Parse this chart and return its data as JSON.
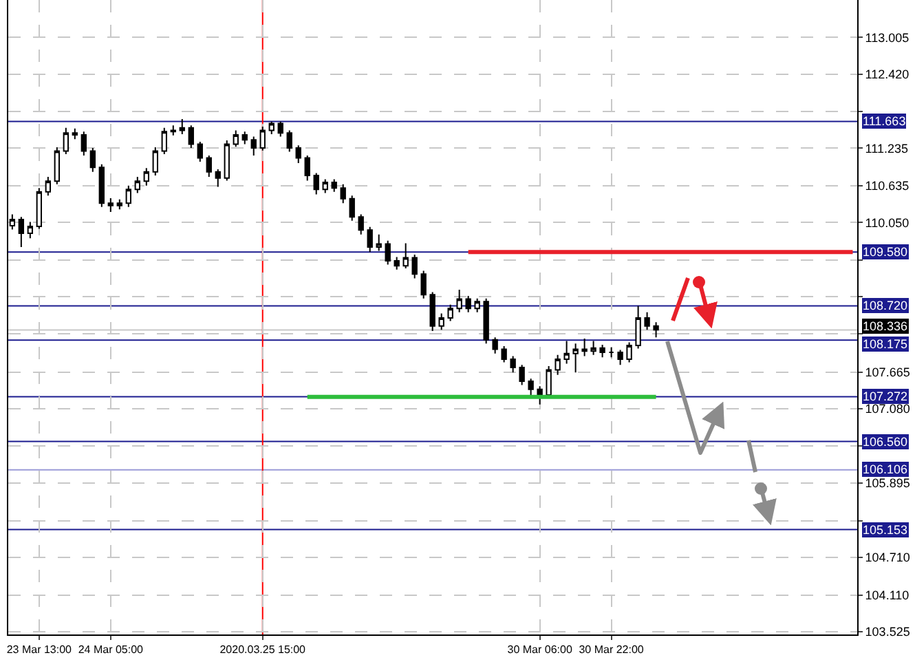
{
  "chart_data": {
    "type": "candlestick",
    "categories": [
      null,
      null,
      null,
      "23 Mar 13:00",
      null,
      null,
      null,
      null,
      null,
      null,
      null,
      "24 Mar 05:00",
      null,
      null,
      null,
      null,
      null,
      null,
      null,
      null,
      null,
      null,
      null,
      null,
      null,
      null,
      null,
      null,
      "2020.03.25 15:00",
      null,
      null,
      null,
      null,
      null,
      null,
      null,
      null,
      null,
      null,
      null,
      null,
      null,
      null,
      null,
      null,
      null,
      null,
      null,
      null,
      null,
      null,
      null,
      null,
      null,
      null,
      null,
      null,
      null,
      null,
      "30 Mar 06:00",
      null,
      null,
      null,
      null,
      null,
      null,
      null,
      "30 Mar 22:00",
      null,
      null,
      null,
      null,
      null,
      null,
      null,
      null,
      null,
      null,
      null,
      null,
      null,
      null,
      null,
      null,
      null,
      null,
      null,
      null,
      null,
      null,
      null,
      null,
      null,
      null,
      null
    ],
    "ohlc": [
      [
        110.0,
        110.18,
        109.94,
        110.1
      ],
      [
        110.1,
        110.14,
        109.66,
        109.88
      ],
      [
        109.88,
        110.06,
        109.8,
        109.99
      ],
      [
        109.99,
        110.6,
        109.95,
        110.54
      ],
      [
        110.54,
        110.78,
        110.48,
        110.71
      ],
      [
        110.71,
        111.25,
        110.66,
        111.19
      ],
      [
        111.19,
        111.56,
        111.14,
        111.48
      ],
      [
        111.48,
        111.55,
        111.38,
        111.45
      ],
      [
        111.45,
        111.5,
        111.12,
        111.19
      ],
      [
        111.19,
        111.24,
        110.86,
        110.93
      ],
      [
        110.93,
        110.98,
        110.3,
        110.36
      ],
      [
        110.36,
        110.44,
        110.22,
        110.32
      ],
      [
        110.32,
        110.42,
        110.26,
        110.36
      ],
      [
        110.36,
        110.64,
        110.3,
        110.58
      ],
      [
        110.58,
        110.78,
        110.52,
        110.71
      ],
      [
        110.71,
        110.92,
        110.64,
        110.86
      ],
      [
        110.86,
        111.25,
        110.8,
        111.19
      ],
      [
        111.19,
        111.56,
        111.14,
        111.5
      ],
      [
        111.5,
        111.6,
        111.44,
        111.52
      ],
      [
        111.52,
        111.7,
        111.46,
        111.56
      ],
      [
        111.56,
        111.6,
        111.24,
        111.3
      ],
      [
        111.3,
        111.34,
        111.02,
        111.08
      ],
      [
        111.08,
        111.12,
        110.78,
        110.86
      ],
      [
        110.86,
        110.9,
        110.62,
        110.76
      ],
      [
        110.76,
        111.36,
        110.72,
        111.3
      ],
      [
        111.3,
        111.52,
        111.26,
        111.45
      ],
      [
        111.45,
        111.5,
        111.3,
        111.37
      ],
      [
        111.37,
        111.42,
        111.12,
        111.24
      ],
      [
        111.24,
        111.58,
        111.2,
        111.52
      ],
      [
        111.52,
        111.66,
        111.46,
        111.63
      ],
      [
        111.63,
        111.66,
        111.42,
        111.48
      ],
      [
        111.48,
        111.52,
        111.18,
        111.24
      ],
      [
        111.24,
        111.28,
        111.0,
        111.08
      ],
      [
        111.08,
        111.12,
        110.72,
        110.8
      ],
      [
        110.8,
        110.84,
        110.5,
        110.58
      ],
      [
        110.58,
        110.74,
        110.52,
        110.69
      ],
      [
        110.69,
        110.74,
        110.54,
        110.6
      ],
      [
        110.6,
        110.66,
        110.36,
        110.43
      ],
      [
        110.43,
        110.48,
        110.08,
        110.14
      ],
      [
        110.14,
        110.18,
        109.86,
        109.93
      ],
      [
        109.93,
        109.98,
        109.58,
        109.66
      ],
      [
        109.66,
        109.86,
        109.6,
        109.71
      ],
      [
        109.71,
        109.76,
        109.38,
        109.44
      ],
      [
        109.44,
        109.5,
        109.3,
        109.36
      ],
      [
        109.36,
        109.72,
        109.32,
        109.49
      ],
      [
        109.49,
        109.54,
        109.16,
        109.23
      ],
      [
        109.23,
        109.28,
        108.84,
        108.9
      ],
      [
        108.9,
        108.94,
        108.32,
        108.4
      ],
      [
        108.4,
        108.6,
        108.34,
        108.53
      ],
      [
        108.53,
        108.74,
        108.48,
        108.68
      ],
      [
        108.68,
        108.98,
        108.62,
        108.83
      ],
      [
        108.83,
        108.88,
        108.62,
        108.68
      ],
      [
        108.68,
        108.84,
        108.62,
        108.79
      ],
      [
        108.79,
        108.84,
        108.12,
        108.18
      ],
      [
        108.18,
        108.22,
        107.96,
        108.03
      ],
      [
        108.03,
        108.08,
        107.82,
        107.87
      ],
      [
        107.87,
        107.92,
        107.66,
        107.74
      ],
      [
        107.74,
        107.78,
        107.46,
        107.52
      ],
      [
        107.52,
        107.56,
        107.3,
        107.39
      ],
      [
        107.39,
        107.44,
        107.15,
        107.3
      ],
      [
        107.3,
        107.76,
        107.26,
        107.7
      ],
      [
        107.7,
        107.94,
        107.62,
        107.87
      ],
      [
        107.87,
        108.16,
        107.8,
        107.96
      ],
      [
        107.96,
        108.12,
        107.66,
        108.03
      ],
      [
        108.03,
        108.2,
        107.92,
        108.0
      ],
      [
        108.0,
        108.16,
        107.94,
        108.05
      ],
      [
        108.05,
        108.1,
        107.9,
        107.98
      ],
      [
        107.98,
        108.06,
        107.9,
        107.98
      ],
      [
        107.98,
        108.02,
        107.78,
        107.87
      ],
      [
        107.87,
        108.14,
        107.82,
        108.09
      ],
      [
        108.09,
        108.72,
        108.04,
        108.53
      ],
      [
        108.53,
        108.62,
        108.34,
        108.4
      ],
      [
        108.4,
        108.46,
        108.22,
        108.34
      ],
      null,
      null,
      null,
      null,
      null,
      null,
      null,
      null,
      null,
      null,
      null,
      null,
      null,
      null,
      null,
      null,
      null,
      null,
      null,
      null,
      null,
      null
    ],
    "series": [
      {
        "type": "line",
        "color": "#e8202a",
        "values": [
          null,
          null,
          null,
          null,
          null,
          null,
          null,
          null,
          null,
          null,
          null,
          null,
          null,
          null,
          null,
          null,
          null,
          null,
          null,
          null,
          null,
          null,
          null,
          null,
          null,
          null,
          null,
          null,
          null,
          null,
          null,
          null,
          null,
          null,
          null,
          null,
          null,
          null,
          null,
          null,
          null,
          null,
          null,
          null,
          null,
          null,
          null,
          null,
          null,
          null,
          null,
          109.58,
          109.58,
          109.58,
          109.58,
          109.58,
          109.58,
          109.58,
          109.58,
          109.58,
          109.58,
          109.58,
          109.58,
          109.58,
          109.58,
          109.58,
          109.58,
          109.58,
          109.58,
          109.58,
          109.58,
          109.58,
          109.58,
          109.58,
          109.58,
          109.58,
          109.58,
          109.58,
          109.58,
          109.58,
          109.58,
          109.58,
          109.58,
          109.58,
          109.58,
          109.58,
          109.58,
          109.58,
          109.58,
          109.58,
          109.58,
          109.58,
          109.58,
          109.58,
          109.58
        ]
      },
      {
        "type": "line",
        "color": "#2ebd3c",
        "values": [
          null,
          null,
          null,
          null,
          null,
          null,
          null,
          null,
          null,
          null,
          null,
          null,
          null,
          null,
          null,
          null,
          null,
          null,
          null,
          null,
          null,
          null,
          null,
          null,
          null,
          null,
          null,
          null,
          null,
          null,
          null,
          null,
          null,
          107.27,
          107.27,
          107.27,
          107.27,
          107.27,
          107.27,
          107.27,
          107.27,
          107.27,
          107.27,
          107.27,
          107.27,
          107.27,
          107.27,
          107.27,
          107.27,
          107.27,
          107.27,
          107.27,
          107.27,
          107.27,
          107.27,
          107.27,
          107.27,
          107.27,
          107.27,
          107.27,
          107.27,
          107.27,
          107.27,
          107.27,
          107.27,
          107.27,
          107.27,
          107.27,
          107.27,
          107.27,
          107.27,
          107.27,
          107.27,
          null,
          null,
          null,
          null,
          null,
          null,
          null,
          null,
          null,
          null,
          null,
          null,
          null,
          null,
          null,
          null,
          null,
          null,
          null,
          null,
          null,
          null
        ]
      }
    ],
    "ylim": [
      103.48,
      113.6
    ],
    "yticks": [
      {
        "value": 103.525,
        "label": "103.525"
      },
      {
        "value": 104.11,
        "label": "104.110"
      },
      {
        "value": 104.71,
        "label": "104.710"
      },
      {
        "value": 105.295,
        "label": null
      },
      {
        "value": 105.895,
        "label": "105.895"
      },
      {
        "value": 106.49,
        "label": null
      },
      {
        "value": 107.08,
        "label": "107.080"
      },
      {
        "value": 107.665,
        "label": "107.665"
      },
      {
        "value": 108.28,
        "label": null
      },
      {
        "value": 108.865,
        "label": null
      },
      {
        "value": 109.45,
        "label": null
      },
      {
        "value": 110.05,
        "label": "110.050"
      },
      {
        "value": 110.635,
        "label": "110.635"
      },
      {
        "value": 111.235,
        "label": "111.235"
      },
      {
        "value": 111.82,
        "label": null
      },
      {
        "value": 112.42,
        "label": "112.420"
      },
      {
        "value": 113.005,
        "label": "113.005"
      }
    ],
    "ref_lines": [
      {
        "axis": "y",
        "value": 111.663,
        "label": "111.663",
        "color": "#1c1c8f"
      },
      {
        "axis": "y",
        "value": 109.58,
        "label": "109.580",
        "color": "#1c1c8f"
      },
      {
        "axis": "y",
        "value": 108.72,
        "label": "108.720",
        "color": "#1c1c8f"
      },
      {
        "axis": "y",
        "value": 108.336,
        "label": "108.336",
        "color": "#c8c8c8"
      },
      {
        "axis": "y",
        "value": 108.175,
        "label": "108.175",
        "color": "#1c1c8f"
      },
      {
        "axis": "y",
        "value": 107.272,
        "label": "107.272",
        "color": "#1c1c8f"
      },
      {
        "axis": "y",
        "value": 106.56,
        "label": "106.560",
        "color": "#1c1c8f"
      },
      {
        "axis": "y",
        "value": 106.106,
        "label": "106.106",
        "color": "#9a9ad8"
      },
      {
        "axis": "y",
        "value": 105.153,
        "label": "105.153",
        "color": "#1c1c8f"
      },
      {
        "axis": "x",
        "value": "2020.03.25 15:00",
        "color": "#ff0000"
      }
    ],
    "grid": true
  }
}
